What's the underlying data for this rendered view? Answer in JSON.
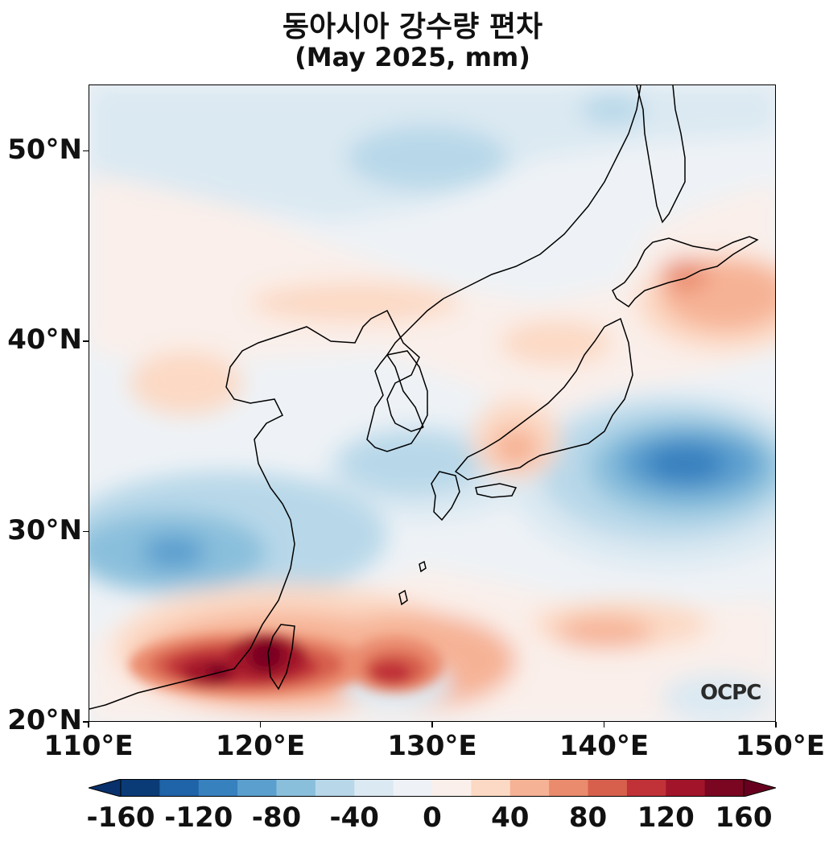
{
  "header": {
    "title": "동아시아 강수량 편차",
    "subtitle": "(May 2025, mm)"
  },
  "map": {
    "region": "East Asia",
    "lon_range": [
      110,
      150
    ],
    "lat_range": [
      20,
      53.5
    ],
    "lat_ticks": [
      {
        "value": 20,
        "label": "20°N"
      },
      {
        "value": 30,
        "label": "30°N"
      },
      {
        "value": 40,
        "label": "40°N"
      },
      {
        "value": 50,
        "label": "50°N"
      }
    ],
    "lon_ticks": [
      {
        "value": 110,
        "label": "110°E"
      },
      {
        "value": 120,
        "label": "120°E"
      },
      {
        "value": 130,
        "label": "130°E"
      },
      {
        "value": 140,
        "label": "140°E"
      },
      {
        "value": 150,
        "label": "150°E"
      }
    ],
    "colorscale": "RdBu_r"
  },
  "colorbar": {
    "levels": [
      -160,
      -140,
      -120,
      -100,
      -80,
      -60,
      -40,
      -20,
      0,
      20,
      40,
      60,
      80,
      100,
      120,
      140,
      160
    ],
    "labels": [
      "-160",
      "-120",
      "-80",
      "-40",
      "0",
      "40",
      "80",
      "120",
      "160"
    ],
    "colors": [
      "#0b3b76",
      "#1f63a8",
      "#3781bf",
      "#5b9fcf",
      "#8abfdc",
      "#b8d8e9",
      "#dbe9f2",
      "#eef2f6",
      "#faefea",
      "#fcd9c4",
      "#f6b295",
      "#ea8b6e",
      "#d7604d",
      "#c03238",
      "#a2142a",
      "#7a0622"
    ],
    "extend": "both"
  },
  "logo": {
    "text": "OCPC"
  }
}
